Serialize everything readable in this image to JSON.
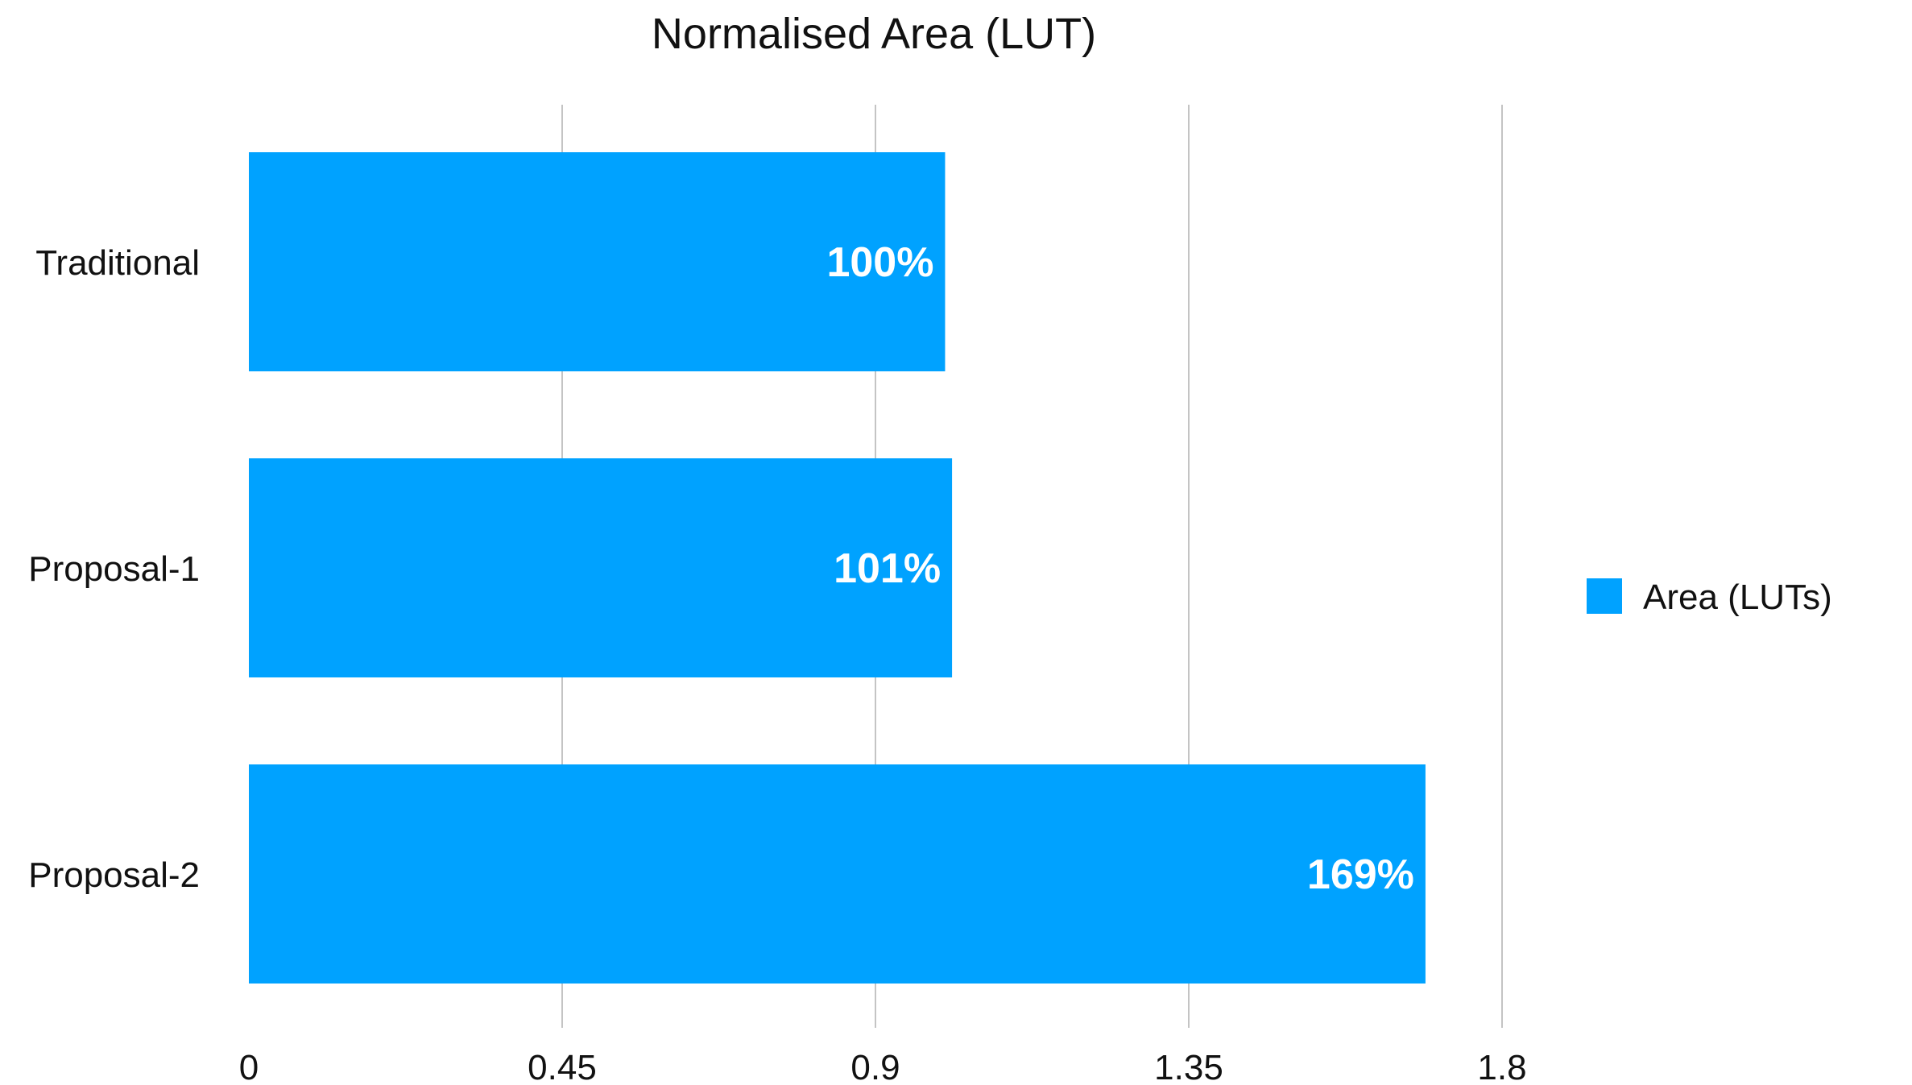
{
  "chart_data": {
    "type": "bar",
    "orientation": "horizontal",
    "title": "Normalised Area (LUT)",
    "xlabel": "",
    "ylabel": "",
    "categories": [
      "Traditional",
      "Proposal-1",
      "Proposal-2"
    ],
    "series": [
      {
        "name": "Area (LUTs)",
        "values": [
          1.0,
          1.01,
          1.69
        ],
        "labels": [
          "100%",
          "101%",
          "169%"
        ],
        "color": "#00a2ff"
      }
    ],
    "xlim": [
      0,
      1.8
    ],
    "ticks": [
      "0",
      "0.45",
      "0.9",
      "1.35",
      "1.8"
    ],
    "tick_values": [
      0,
      0.45,
      0.9,
      1.35,
      1.8
    ],
    "grid": true,
    "legend": "right"
  }
}
